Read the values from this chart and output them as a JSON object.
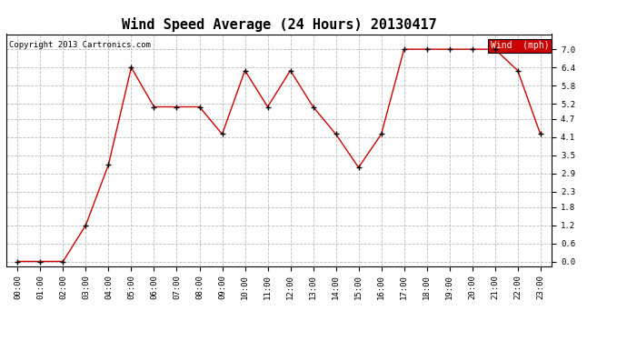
{
  "title": "Wind Speed Average (24 Hours) 20130417",
  "copyright": "Copyright 2013 Cartronics.com",
  "legend_label": "Wind  (mph)",
  "hours": [
    "00:00",
    "01:00",
    "02:00",
    "03:00",
    "04:00",
    "05:00",
    "06:00",
    "07:00",
    "08:00",
    "09:00",
    "10:00",
    "11:00",
    "12:00",
    "13:00",
    "14:00",
    "15:00",
    "16:00",
    "17:00",
    "18:00",
    "19:00",
    "20:00",
    "21:00",
    "22:00",
    "23:00"
  ],
  "values": [
    0.0,
    0.0,
    0.0,
    1.2,
    3.2,
    6.4,
    5.1,
    5.1,
    5.1,
    4.2,
    6.3,
    5.1,
    6.3,
    5.1,
    4.2,
    3.1,
    4.2,
    7.0,
    7.0,
    7.0,
    7.0,
    7.0,
    6.3,
    4.2
  ],
  "line_color": "#cc0000",
  "marker_color": "#000000",
  "bg_color": "#ffffff",
  "grid_color": "#bbbbbb",
  "yticks": [
    0.0,
    0.6,
    1.2,
    1.8,
    2.3,
    2.9,
    3.5,
    4.1,
    4.7,
    5.2,
    5.8,
    6.4,
    7.0
  ],
  "ylim": [
    -0.15,
    7.5
  ],
  "title_fontsize": 11,
  "legend_bg": "#cc0000",
  "legend_text_color": "#ffffff",
  "copyright_fontsize": 6.5,
  "tick_fontsize": 6.5
}
